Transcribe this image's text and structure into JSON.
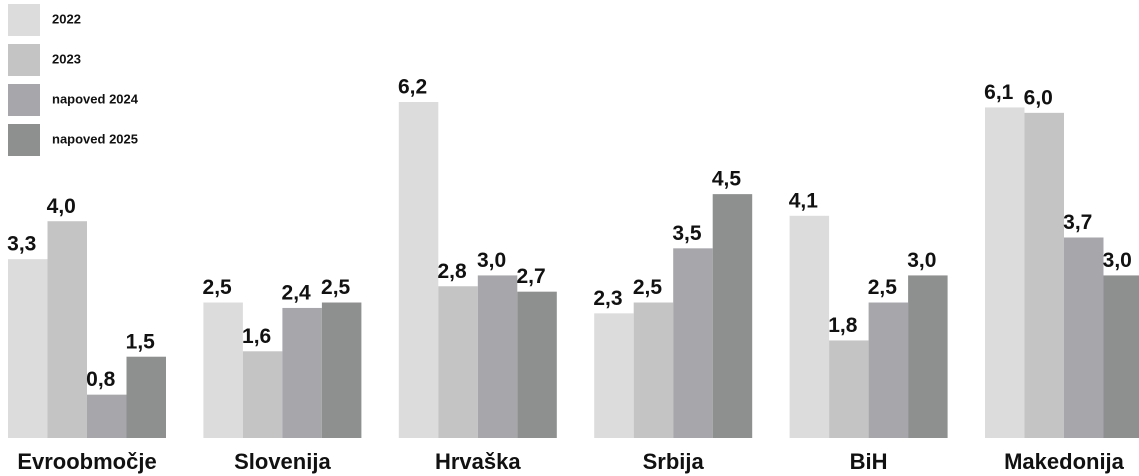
{
  "chart_data": {
    "type": "bar",
    "categories": [
      "Evroobmočje",
      "Slovenija",
      "Hrvaška",
      "Srbija",
      "BiH",
      "Makedonija"
    ],
    "series": [
      {
        "name": "2022",
        "color": "#dcdcdc",
        "values": [
          3.3,
          2.5,
          6.2,
          2.3,
          4.1,
          6.1
        ],
        "value_labels": [
          "3,3",
          "2,5",
          "6,2",
          "2,3",
          "4,1",
          "6,1"
        ]
      },
      {
        "name": "2023",
        "color": "#c4c4c4",
        "values": [
          4.0,
          1.6,
          2.8,
          2.5,
          1.8,
          6.0
        ],
        "value_labels": [
          "4,0",
          "1,6",
          "2,8",
          "2,5",
          "1,8",
          "6,0"
        ]
      },
      {
        "name": "napoved 2024",
        "color": "#a7a7ab",
        "values": [
          0.8,
          2.4,
          3.0,
          3.5,
          2.5,
          3.7
        ],
        "value_labels": [
          "0,8",
          "2,4",
          "3,0",
          "3,5",
          "2,5",
          "3,7"
        ]
      },
      {
        "name": "napoved 2025",
        "color": "#8e8f8f",
        "values": [
          1.5,
          2.5,
          2.7,
          4.5,
          3.0,
          3.0
        ],
        "value_labels": [
          "1,5",
          "2,5",
          "2,7",
          "4,5",
          "3,0",
          "3,0"
        ]
      }
    ],
    "legend": "top-left"
  }
}
